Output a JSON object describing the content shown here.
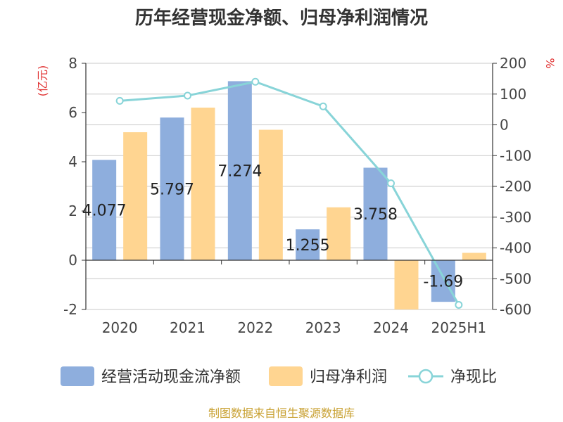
{
  "chart_data": {
    "type": "bar",
    "title": "历年经营现金净额、归母净利润情况",
    "categories": [
      "2020",
      "2021",
      "2022",
      "2023",
      "2024",
      "2025H1"
    ],
    "series": [
      {
        "name": "经营活动现金流净额",
        "type": "bar",
        "axis": "left",
        "color": "#8eaedd",
        "values": [
          4.077,
          5.797,
          7.274,
          1.255,
          3.758,
          -1.69
        ],
        "data_labels": [
          "4.077",
          "5.797",
          "7.274",
          "1.255",
          "3.758",
          "-1.69"
        ]
      },
      {
        "name": "归母净利润",
        "type": "bar",
        "axis": "left",
        "color": "#ffd591",
        "values": [
          5.2,
          6.2,
          5.3,
          2.15,
          -2.0,
          0.3
        ]
      },
      {
        "name": "净现比",
        "type": "line",
        "axis": "right",
        "color": "#88d4d8",
        "values": [
          78,
          95,
          140,
          60,
          -190,
          -585
        ]
      }
    ],
    "left_axis": {
      "unit": "(亿元)",
      "min": -2,
      "max": 8,
      "ticks": [
        "-2",
        "0",
        "2",
        "4",
        "6",
        "8"
      ]
    },
    "right_axis": {
      "unit": "%",
      "min": -600,
      "max": 200,
      "ticks": [
        "-600",
        "-500",
        "-400",
        "-300",
        "-200",
        "-100",
        "0",
        "100",
        "200"
      ]
    },
    "grid": true,
    "legend_position": "bottom"
  },
  "source": "制图数据来自恒生聚源数据库"
}
